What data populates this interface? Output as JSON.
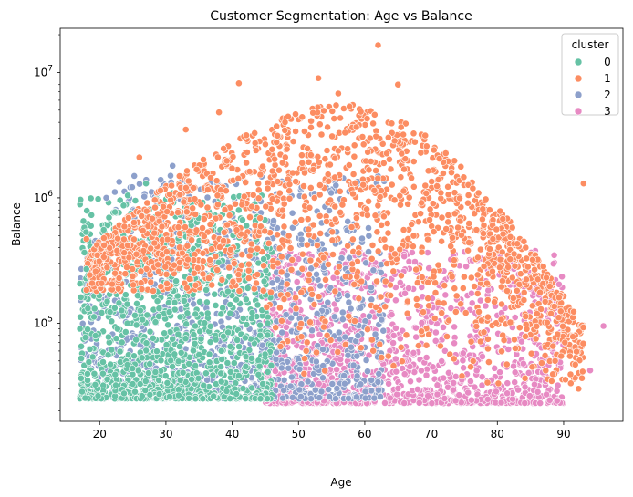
{
  "chart_data": {
    "type": "scatter",
    "title": "Customer Segmentation: Age vs Balance",
    "xlabel": "Age",
    "ylabel": "Balance",
    "xlim": [
      14.05,
      98.95
    ],
    "ylim": [
      16500,
      22500000
    ],
    "yscale": "log",
    "xticks": [
      20,
      30,
      40,
      50,
      60,
      70,
      80,
      90
    ],
    "yticks": [
      {
        "value": 100000,
        "base": "10",
        "exp": "5"
      },
      {
        "value": 1000000,
        "base": "10",
        "exp": "6"
      },
      {
        "value": 10000000,
        "base": "10",
        "exp": "7"
      }
    ],
    "legend": {
      "title": "cluster",
      "placement": "top-right"
    },
    "series": [
      {
        "name": "0",
        "color": "#66c2a5",
        "age_range": [
          17,
          46
        ],
        "balance_range": [
          25000,
          1300000
        ]
      },
      {
        "name": "1",
        "color": "#fc8d62",
        "age_range": [
          18,
          93
        ],
        "balance_range": [
          25000,
          16500000
        ]
      },
      {
        "name": "2",
        "color": "#8da0cb",
        "age_range": [
          17,
          65
        ],
        "balance_range": [
          25000,
          1800000
        ]
      },
      {
        "name": "3",
        "color": "#e78ac3",
        "age_range": [
          45,
          96
        ],
        "balance_range": [
          23000,
          400000
        ]
      }
    ],
    "notable_points": [
      {
        "series": "1",
        "x": 62,
        "y": 16500000
      },
      {
        "series": "1",
        "x": 53,
        "y": 9000000
      },
      {
        "series": "1",
        "x": 41,
        "y": 8200000
      },
      {
        "series": "1",
        "x": 65,
        "y": 8000000
      },
      {
        "series": "1",
        "x": 56,
        "y": 6800000
      },
      {
        "series": "1",
        "x": 38,
        "y": 4800000
      },
      {
        "series": "1",
        "x": 33,
        "y": 3500000
      },
      {
        "series": "1",
        "x": 93,
        "y": 1300000
      },
      {
        "series": "1",
        "x": 26,
        "y": 2100000
      },
      {
        "series": "1",
        "x": 18,
        "y": 470000
      },
      {
        "series": "2",
        "x": 21,
        "y": 1000000
      },
      {
        "series": "2",
        "x": 31,
        "y": 1800000
      },
      {
        "series": "0",
        "x": 27,
        "y": 1300000
      },
      {
        "series": "0",
        "x": 18,
        "y": 270000
      },
      {
        "series": "3",
        "x": 96,
        "y": 95000
      },
      {
        "series": "3",
        "x": 94,
        "y": 42000
      },
      {
        "series": "3",
        "x": 89,
        "y": 24000
      }
    ]
  }
}
